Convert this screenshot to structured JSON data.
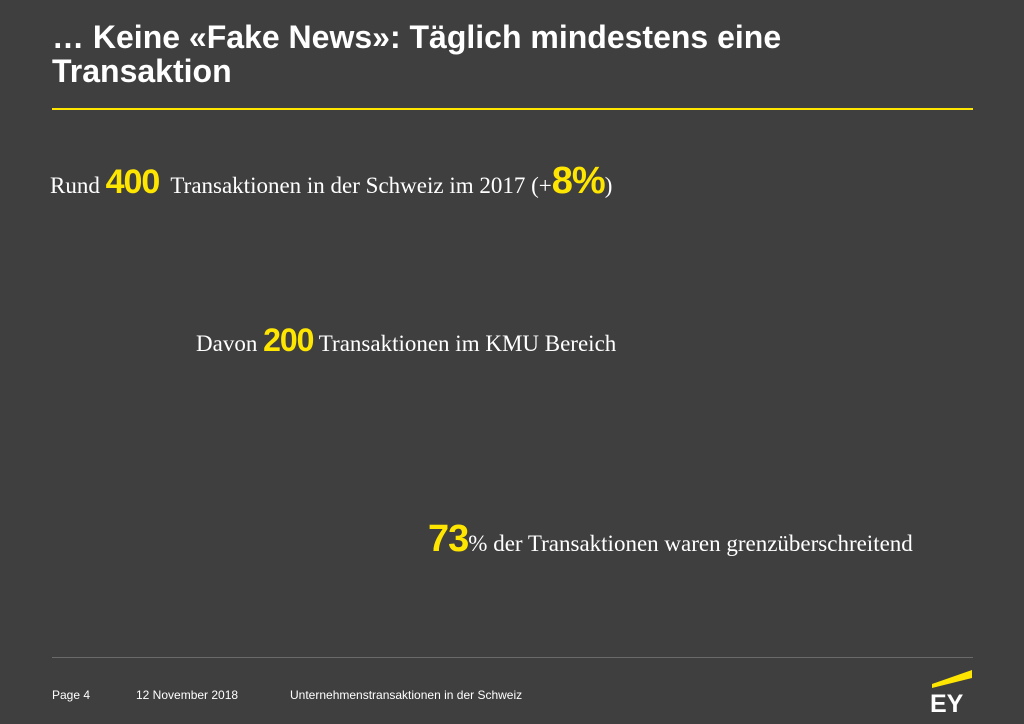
{
  "slide": {
    "title": "… Keine «Fake News»:  Täglich mindestens eine Transaktion"
  },
  "stats": {
    "line1": {
      "prefix": "Rund ",
      "number": "400",
      "middle": "  Transaktionen in der Schweiz im 2017 (+",
      "percent": "8%",
      "suffix": ")"
    },
    "line2": {
      "prefix": "Davon ",
      "number": "200",
      "suffix": " Transaktionen im KMU Bereich"
    },
    "line3": {
      "number": "73",
      "suffix": "% der Transaktionen waren grenzüberschreitend"
    }
  },
  "footer": {
    "page": "Page 4",
    "date": "12 November 2018",
    "document": "Unternehmenstransaktionen in der Schweiz"
  },
  "logo": {
    "text": "EY",
    "icon": "ey-logo-icon"
  },
  "colors": {
    "background": "#3f3f3f",
    "accent": "#ffe600",
    "text": "#ffffff"
  }
}
